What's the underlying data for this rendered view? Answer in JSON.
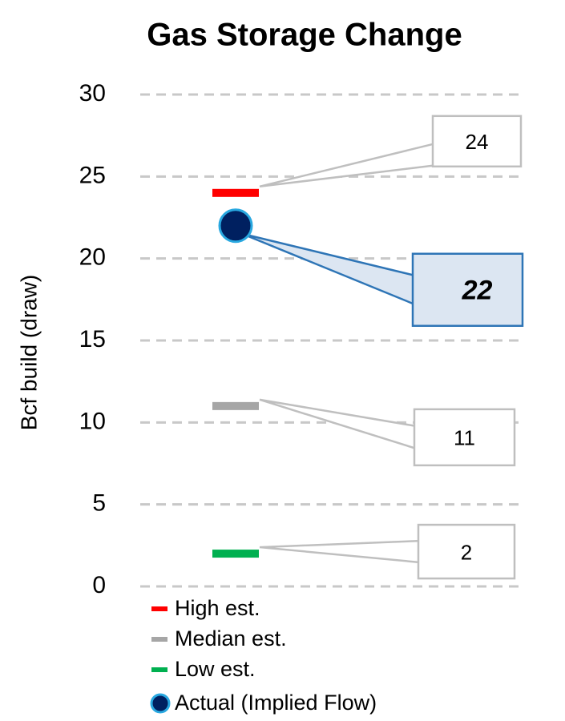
{
  "chart_data": {
    "type": "dot",
    "title": "Gas Storage Change",
    "y_label": "Bcf build (draw)",
    "ylim": [
      0,
      30
    ],
    "yticks": [
      0,
      5,
      10,
      15,
      20,
      25,
      30
    ],
    "grid": true,
    "series": [
      {
        "name": "High est.",
        "color": "#ff0000",
        "marker": "dash",
        "values": [
          24
        ]
      },
      {
        "name": "Median est.",
        "color": "#a6a6a6",
        "marker": "dash",
        "values": [
          11
        ]
      },
      {
        "name": "Low est.",
        "color": "#00b050",
        "marker": "dash",
        "values": [
          2
        ]
      },
      {
        "name": "Actual (Implied Flow)",
        "color": "#002060",
        "marker": "circle",
        "values": [
          22
        ]
      }
    ]
  }
}
